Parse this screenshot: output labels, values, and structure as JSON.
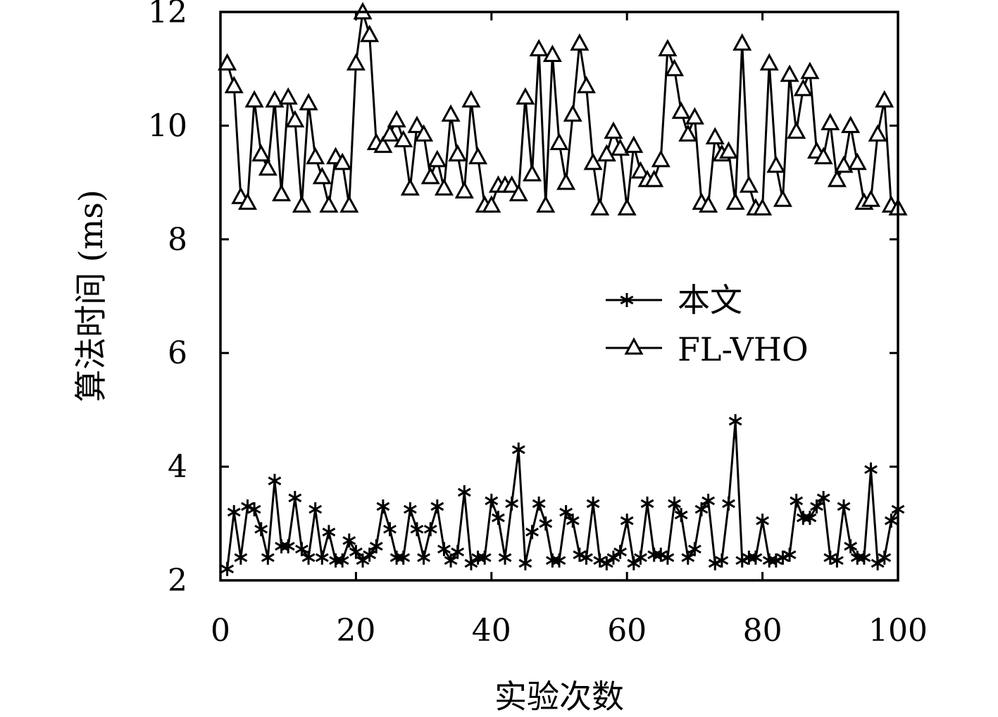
{
  "chart_data": {
    "type": "line",
    "xlabel": "实验次数",
    "ylabel": "算法时间 (ms)",
    "xlim": [
      0,
      100
    ],
    "ylim": [
      2,
      12
    ],
    "xticks": [
      "0",
      "20",
      "40",
      "60",
      "80",
      "100"
    ],
    "yticks": [
      "2",
      "4",
      "6",
      "8",
      "10",
      "12"
    ],
    "grid": false,
    "legend_position": "center-right",
    "x": [
      1,
      2,
      3,
      4,
      5,
      6,
      7,
      8,
      9,
      10,
      11,
      12,
      13,
      14,
      15,
      16,
      17,
      18,
      19,
      20,
      21,
      22,
      23,
      24,
      25,
      26,
      27,
      28,
      29,
      30,
      31,
      32,
      33,
      34,
      35,
      36,
      37,
      38,
      39,
      40,
      41,
      42,
      43,
      44,
      45,
      46,
      47,
      48,
      49,
      50,
      51,
      52,
      53,
      54,
      55,
      56,
      57,
      58,
      59,
      60,
      61,
      62,
      63,
      64,
      65,
      66,
      67,
      68,
      69,
      70,
      71,
      72,
      73,
      74,
      75,
      76,
      77,
      78,
      79,
      80,
      81,
      82,
      83,
      84,
      85,
      86,
      87,
      88,
      89,
      90,
      91,
      92,
      93,
      94,
      95,
      96,
      97,
      98,
      99,
      100
    ],
    "series": [
      {
        "name": "本文",
        "marker": "star",
        "values": [
          2.2,
          3.2,
          2.4,
          3.3,
          3.25,
          2.9,
          2.4,
          3.75,
          2.6,
          2.6,
          3.45,
          2.55,
          2.4,
          3.25,
          2.4,
          2.85,
          2.35,
          2.35,
          2.7,
          2.5,
          2.35,
          2.45,
          2.6,
          3.3,
          2.9,
          2.4,
          2.4,
          3.25,
          2.9,
          2.4,
          2.9,
          3.3,
          2.55,
          2.35,
          2.5,
          3.55,
          2.3,
          2.4,
          2.4,
          3.4,
          3.1,
          2.4,
          3.35,
          4.3,
          2.3,
          2.85,
          3.35,
          3.0,
          2.35,
          2.35,
          3.2,
          3.05,
          2.45,
          2.4,
          3.35,
          2.35,
          2.3,
          2.4,
          2.5,
          3.05,
          2.3,
          2.4,
          3.35,
          2.45,
          2.45,
          2.4,
          3.35,
          3.15,
          2.4,
          2.55,
          3.25,
          3.4,
          2.3,
          2.35,
          3.35,
          4.8,
          2.35,
          2.4,
          2.4,
          3.05,
          2.35,
          2.35,
          2.4,
          2.45,
          3.4,
          3.1,
          3.1,
          3.3,
          3.45,
          2.4,
          2.35,
          3.3,
          2.6,
          2.4,
          2.4,
          3.95,
          2.3,
          2.4,
          3.05,
          3.25
        ]
      },
      {
        "name": "FL-VHO",
        "marker": "triangle",
        "values": [
          11.1,
          10.7,
          8.75,
          8.65,
          10.45,
          9.5,
          9.25,
          10.45,
          8.8,
          10.5,
          10.1,
          8.6,
          10.4,
          9.45,
          9.1,
          8.6,
          9.45,
          9.35,
          8.6,
          11.1,
          12.0,
          11.6,
          9.7,
          9.65,
          9.85,
          10.1,
          9.75,
          8.9,
          10.0,
          9.85,
          9.1,
          9.4,
          8.9,
          10.2,
          9.5,
          8.85,
          10.45,
          9.45,
          8.6,
          8.6,
          8.95,
          8.95,
          8.95,
          8.8,
          10.5,
          9.15,
          11.35,
          8.6,
          11.25,
          9.7,
          9.0,
          10.2,
          11.45,
          10.7,
          9.35,
          8.55,
          9.5,
          9.9,
          9.6,
          8.55,
          9.65,
          9.2,
          9.05,
          9.05,
          9.4,
          11.35,
          11.0,
          10.25,
          9.85,
          10.15,
          8.65,
          8.6,
          9.8,
          9.5,
          9.55,
          8.65,
          11.45,
          8.95,
          8.55,
          8.55,
          11.1,
          9.3,
          8.7,
          10.9,
          9.9,
          10.65,
          10.95,
          9.55,
          9.45,
          10.05,
          9.05,
          9.3,
          10.0,
          9.35,
          8.65,
          8.7,
          9.85,
          10.45,
          8.6,
          8.55
        ]
      }
    ]
  }
}
